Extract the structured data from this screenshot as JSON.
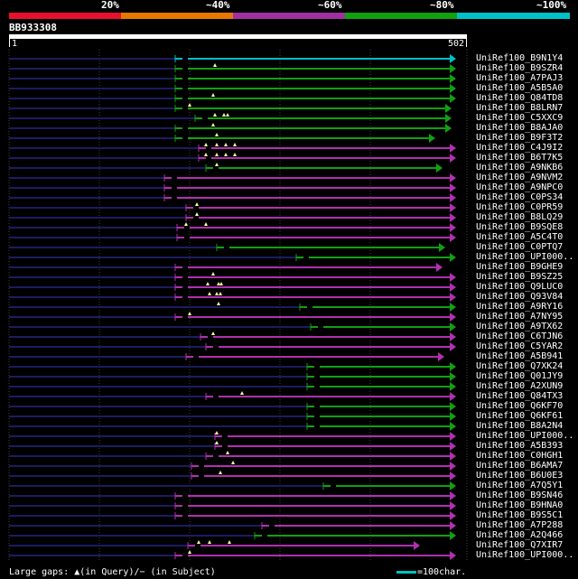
{
  "legend": {
    "labels": [
      "20%",
      "~40%",
      "~60%",
      "~80%",
      "~100%"
    ],
    "colors": [
      "#e8112d",
      "#e87800",
      "#a030a0",
      "#10a010",
      "#00c0c8"
    ]
  },
  "query": {
    "title": "BB933308",
    "start": "1",
    "end": "502"
  },
  "footer": {
    "gaps_text": "Large gaps: ▲(in Query)/− (in Subject)",
    "scale_text": "=100char."
  },
  "colors": {
    "green": "#10a010",
    "magenta": "#b030b0",
    "cyan": "#00c0c8",
    "navy": "#1c1c60"
  },
  "hits": [
    {
      "name": "UniRef100_B9N1Y4",
      "color": "cyan",
      "start": 194,
      "end": 505,
      "arrow": "right",
      "marks": []
    },
    {
      "name": "UniRef100_B9SZR4",
      "color": "green",
      "start": 194,
      "end": 505,
      "arrow": "right",
      "marks": [
        238
      ]
    },
    {
      "name": "UniRef100_A7PAJ3",
      "color": "green",
      "start": 194,
      "end": 505,
      "arrow": "right",
      "marks": []
    },
    {
      "name": "UniRef100_A5B5A0",
      "color": "green",
      "start": 194,
      "end": 505,
      "arrow": "right",
      "marks": []
    },
    {
      "name": "UniRef100_Q84TD8",
      "color": "green",
      "start": 194,
      "end": 505,
      "arrow": "right",
      "marks": [
        236
      ]
    },
    {
      "name": "UniRef100_B8LRN7",
      "color": "green",
      "start": 194,
      "end": 500,
      "arrow": "right",
      "marks": [
        210
      ]
    },
    {
      "name": "UniRef100_C5XXC9",
      "color": "green",
      "start": 216,
      "end": 500,
      "arrow": "right",
      "marks": [
        238,
        248,
        252
      ]
    },
    {
      "name": "UniRef100_B8AJA0",
      "color": "green",
      "start": 194,
      "end": 500,
      "arrow": "right",
      "marks": [
        236
      ]
    },
    {
      "name": "UniRef100_B9F3T2",
      "color": "green",
      "start": 194,
      "end": 482,
      "arrow": "right",
      "marks": [
        240
      ]
    },
    {
      "name": "UniRef100_C4J9I2",
      "color": "magenta",
      "start": 220,
      "end": 505,
      "arrow": "right",
      "marks": [
        228,
        240,
        250,
        260
      ]
    },
    {
      "name": "UniRef100_B6T7K5",
      "color": "magenta",
      "start": 220,
      "end": 505,
      "arrow": "right",
      "marks": [
        228,
        240,
        250,
        260
      ]
    },
    {
      "name": "UniRef100_A9NKB6",
      "color": "green",
      "start": 228,
      "end": 490,
      "arrow": "right",
      "marks": [
        240
      ]
    },
    {
      "name": "UniRef100_A9NVM2",
      "color": "magenta",
      "start": 182,
      "end": 505,
      "arrow": "right",
      "marks": []
    },
    {
      "name": "UniRef100_A9NPC0",
      "color": "magenta",
      "start": 182,
      "end": 505,
      "arrow": "right",
      "marks": []
    },
    {
      "name": "UniRef100_C0PS34",
      "color": "magenta",
      "start": 182,
      "end": 505,
      "arrow": "right",
      "marks": []
    },
    {
      "name": "UniRef100_C0PR59",
      "color": "magenta",
      "start": 206,
      "end": 505,
      "arrow": "right",
      "marks": [
        218
      ]
    },
    {
      "name": "UniRef100_B8LQ29",
      "color": "magenta",
      "start": 206,
      "end": 505,
      "arrow": "right",
      "marks": [
        218
      ]
    },
    {
      "name": "UniRef100_B9SQE8",
      "color": "magenta",
      "start": 196,
      "end": 505,
      "arrow": "right",
      "marks": [
        206,
        228
      ]
    },
    {
      "name": "UniRef100_A5C4T0",
      "color": "magenta",
      "start": 196,
      "end": 505,
      "arrow": "right",
      "marks": []
    },
    {
      "name": "UniRef100_C0PTQ7",
      "color": "green",
      "start": 240,
      "end": 493,
      "arrow": "right",
      "marks": []
    },
    {
      "name": "UniRef100_UPI000..",
      "color": "green",
      "start": 328,
      "end": 505,
      "arrow": "right",
      "marks": []
    },
    {
      "name": "UniRef100_B9GHE9",
      "color": "magenta",
      "start": 194,
      "end": 490,
      "arrow": "right",
      "marks": []
    },
    {
      "name": "UniRef100_B9SZ25",
      "color": "magenta",
      "start": 194,
      "end": 505,
      "arrow": "right",
      "marks": [
        236
      ]
    },
    {
      "name": "UniRef100_Q9LUC0",
      "color": "magenta",
      "start": 194,
      "end": 505,
      "arrow": "right",
      "marks": [
        230,
        242,
        245
      ]
    },
    {
      "name": "UniRef100_Q93V84",
      "color": "magenta",
      "start": 194,
      "end": 505,
      "arrow": "right",
      "marks": [
        232,
        240,
        244
      ]
    },
    {
      "name": "UniRef100_A9RY16",
      "color": "green",
      "start": 332,
      "end": 505,
      "arrow": "right",
      "marks": [
        242
      ]
    },
    {
      "name": "UniRef100_A7NY95",
      "color": "magenta",
      "start": 194,
      "end": 505,
      "arrow": "right",
      "marks": [
        210
      ]
    },
    {
      "name": "UniRef100_A9TX62",
      "color": "green",
      "start": 344,
      "end": 505,
      "arrow": "right",
      "marks": []
    },
    {
      "name": "UniRef100_C6TJN6",
      "color": "magenta",
      "start": 222,
      "end": 505,
      "arrow": "right",
      "marks": [
        236
      ]
    },
    {
      "name": "UniRef100_C5YAR2",
      "color": "magenta",
      "start": 228,
      "end": 505,
      "arrow": "right",
      "marks": []
    },
    {
      "name": "UniRef100_A5B941",
      "color": "magenta",
      "start": 206,
      "end": 492,
      "arrow": "right",
      "marks": []
    },
    {
      "name": "UniRef100_Q7XK24",
      "color": "green",
      "start": 340,
      "end": 505,
      "arrow": "right",
      "marks": []
    },
    {
      "name": "UniRef100_Q01JY9",
      "color": "green",
      "start": 340,
      "end": 505,
      "arrow": "right",
      "marks": []
    },
    {
      "name": "UniRef100_A2XUN9",
      "color": "green",
      "start": 340,
      "end": 505,
      "arrow": "right",
      "marks": []
    },
    {
      "name": "UniRef100_Q84TX3",
      "color": "magenta",
      "start": 228,
      "end": 505,
      "arrow": "right",
      "marks": [
        268
      ]
    },
    {
      "name": "UniRef100_Q6KF70",
      "color": "green",
      "start": 340,
      "end": 505,
      "arrow": "right",
      "marks": []
    },
    {
      "name": "UniRef100_Q6KF61",
      "color": "green",
      "start": 340,
      "end": 505,
      "arrow": "right",
      "marks": []
    },
    {
      "name": "UniRef100_B8A2N4",
      "color": "green",
      "start": 340,
      "end": 505,
      "arrow": "right",
      "marks": []
    },
    {
      "name": "UniRef100_UPI000..",
      "color": "magenta",
      "start": 238,
      "end": 505,
      "arrow": "right",
      "marks": [
        240
      ]
    },
    {
      "name": "UniRef100_A5B393",
      "color": "magenta",
      "start": 238,
      "end": 505,
      "arrow": "right",
      "marks": [
        240
      ]
    },
    {
      "name": "UniRef100_C0HGH1",
      "color": "magenta",
      "start": 228,
      "end": 505,
      "arrow": "right",
      "marks": [
        252
      ]
    },
    {
      "name": "UniRef100_B6AMA7",
      "color": "magenta",
      "start": 212,
      "end": 505,
      "arrow": "right",
      "marks": [
        258
      ]
    },
    {
      "name": "UniRef100_B6U0E3",
      "color": "magenta",
      "start": 212,
      "end": 505,
      "arrow": "right",
      "marks": [
        244
      ]
    },
    {
      "name": "UniRef100_A7Q5Y1",
      "color": "green",
      "start": 358,
      "end": 505,
      "arrow": "right",
      "marks": []
    },
    {
      "name": "UniRef100_B9SN46",
      "color": "magenta",
      "start": 194,
      "end": 505,
      "arrow": "right",
      "marks": []
    },
    {
      "name": "UniRef100_B9HNA0",
      "color": "magenta",
      "start": 194,
      "end": 505,
      "arrow": "right",
      "marks": []
    },
    {
      "name": "UniRef100_B9S5C1",
      "color": "magenta",
      "start": 194,
      "end": 505,
      "arrow": "right",
      "marks": []
    },
    {
      "name": "UniRef100_A7P288",
      "color": "magenta",
      "start": 290,
      "end": 505,
      "arrow": "right",
      "marks": []
    },
    {
      "name": "UniRef100_A2Q466",
      "color": "green",
      "start": 282,
      "end": 505,
      "arrow": "right",
      "marks": []
    },
    {
      "name": "UniRef100_Q7XIR7",
      "color": "magenta",
      "start": 208,
      "end": 465,
      "arrow": "right",
      "marks": [
        220,
        232,
        254
      ]
    },
    {
      "name": "UniRef100_UPI000..",
      "color": "magenta",
      "start": 194,
      "end": 505,
      "arrow": "right",
      "marks": [
        210
      ]
    }
  ]
}
